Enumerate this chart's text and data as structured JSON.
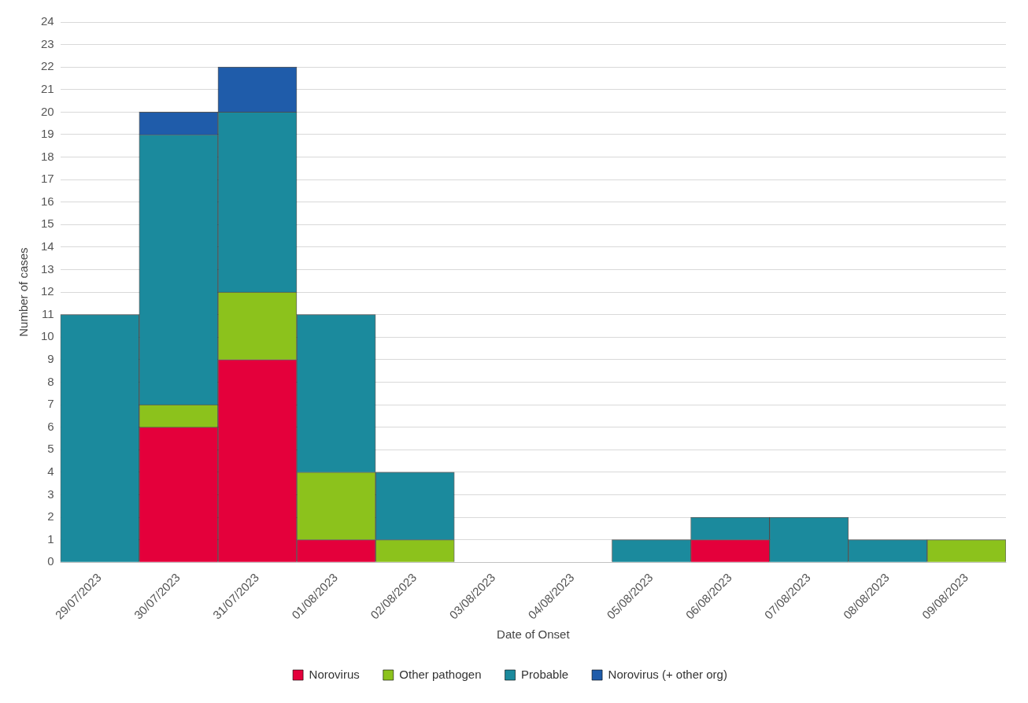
{
  "chart_data": {
    "type": "bar",
    "stacked": true,
    "xlabel": "Date of Onset",
    "ylabel": "Number of cases",
    "categories": [
      "29/07/2023",
      "30/07/2023",
      "31/07/2023",
      "01/08/2023",
      "02/08/2023",
      "03/08/2023",
      "04/08/2023",
      "05/08/2023",
      "06/08/2023",
      "07/08/2023",
      "08/08/2023",
      "09/08/2023"
    ],
    "series": [
      {
        "name": "Norovirus",
        "color": "#e4003b",
        "values": [
          0,
          6,
          9,
          1,
          0,
          0,
          0,
          0,
          1,
          0,
          0,
          0
        ]
      },
      {
        "name": "Other pathogen",
        "color": "#8cc21c",
        "values": [
          0,
          1,
          3,
          3,
          1,
          0,
          0,
          0,
          0,
          0,
          0,
          1
        ]
      },
      {
        "name": "Probable",
        "color": "#1b8a9d",
        "values": [
          11,
          12,
          8,
          7,
          3,
          0,
          0,
          1,
          1,
          2,
          1,
          0
        ]
      },
      {
        "name": "Norovirus (+ other org)",
        "color": "#1f5caa",
        "values": [
          0,
          1,
          2,
          0,
          0,
          0,
          0,
          0,
          0,
          0,
          0,
          0
        ]
      }
    ],
    "ylim": [
      0,
      24
    ],
    "yticks": [
      0,
      1,
      2,
      3,
      4,
      5,
      6,
      7,
      8,
      9,
      10,
      11,
      12,
      13,
      14,
      15,
      16,
      17,
      18,
      19,
      20,
      21,
      22,
      23,
      24
    ],
    "grid": "y",
    "legend": "bottom"
  }
}
